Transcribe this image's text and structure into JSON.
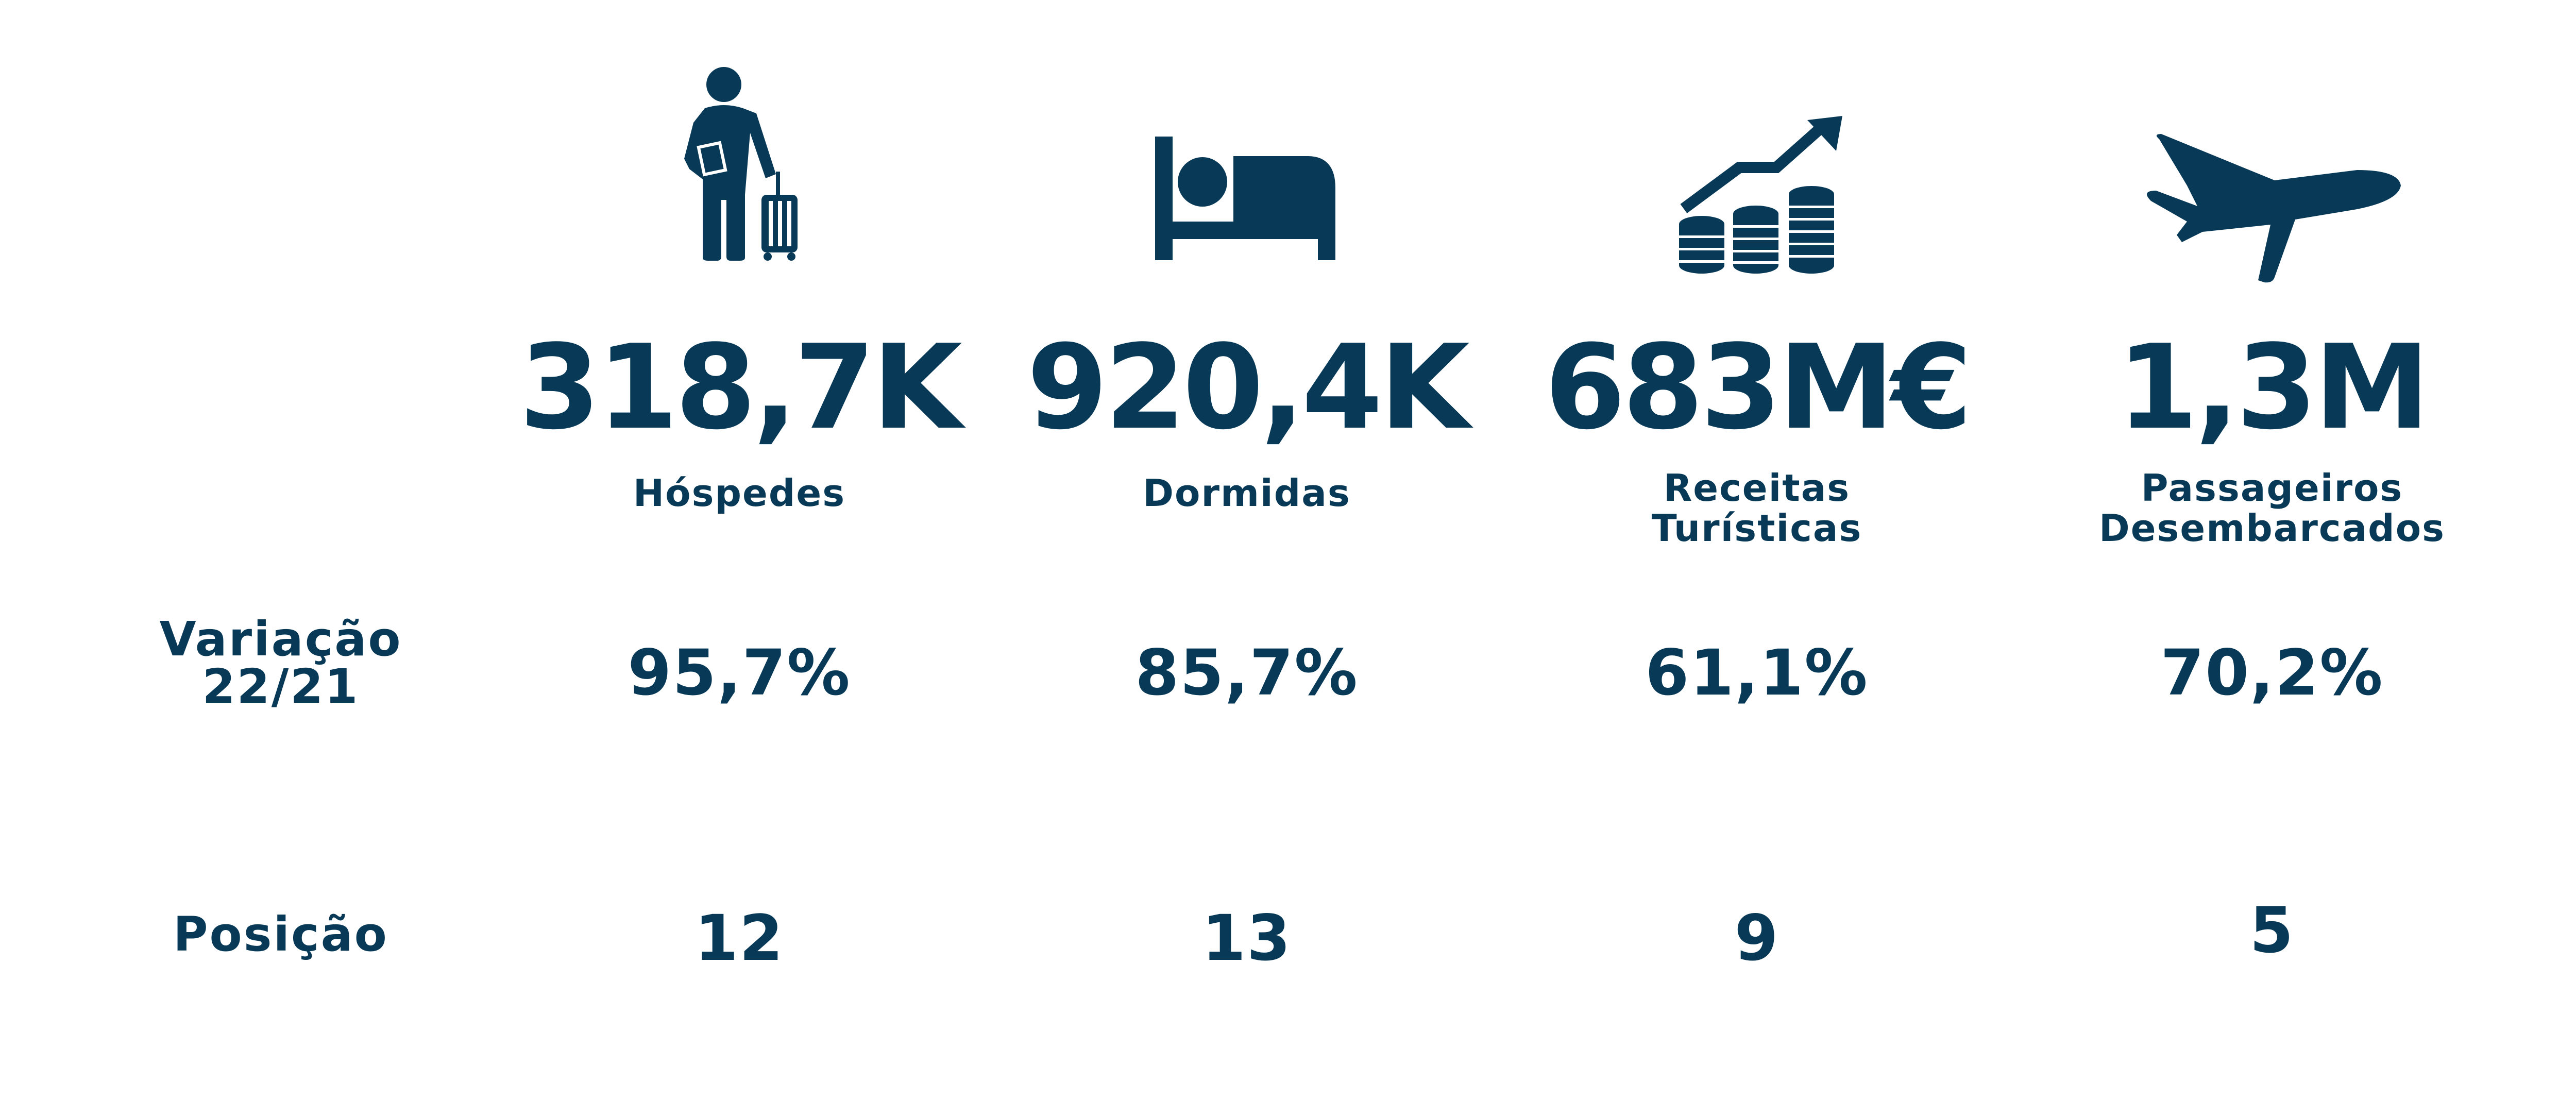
{
  "colors": {
    "primary": "#083a58",
    "background": "#ffffff"
  },
  "metrics": [
    {
      "icon": "traveler-with-suitcase-icon",
      "value": "318,7K",
      "label_lines": [
        "Hóspedes"
      ],
      "variation": "95,7%",
      "position": "12"
    },
    {
      "icon": "bed-icon",
      "value": "920,4K",
      "label_lines": [
        "Dormidas"
      ],
      "variation": "85,7%",
      "position": "13"
    },
    {
      "icon": "coins-growth-icon",
      "value": "683M€",
      "label_lines": [
        "Receitas",
        "Turísticas"
      ],
      "variation": "61,1%",
      "position": "9"
    },
    {
      "icon": "airplane-icon",
      "value": "1,3M",
      "label_lines": [
        "Passageiros",
        "Desembarcados"
      ],
      "variation": "70,2%",
      "position": "5"
    }
  ],
  "rows": {
    "variation_label_lines": [
      "Variação",
      "22/21"
    ],
    "position_label": "Posição"
  }
}
